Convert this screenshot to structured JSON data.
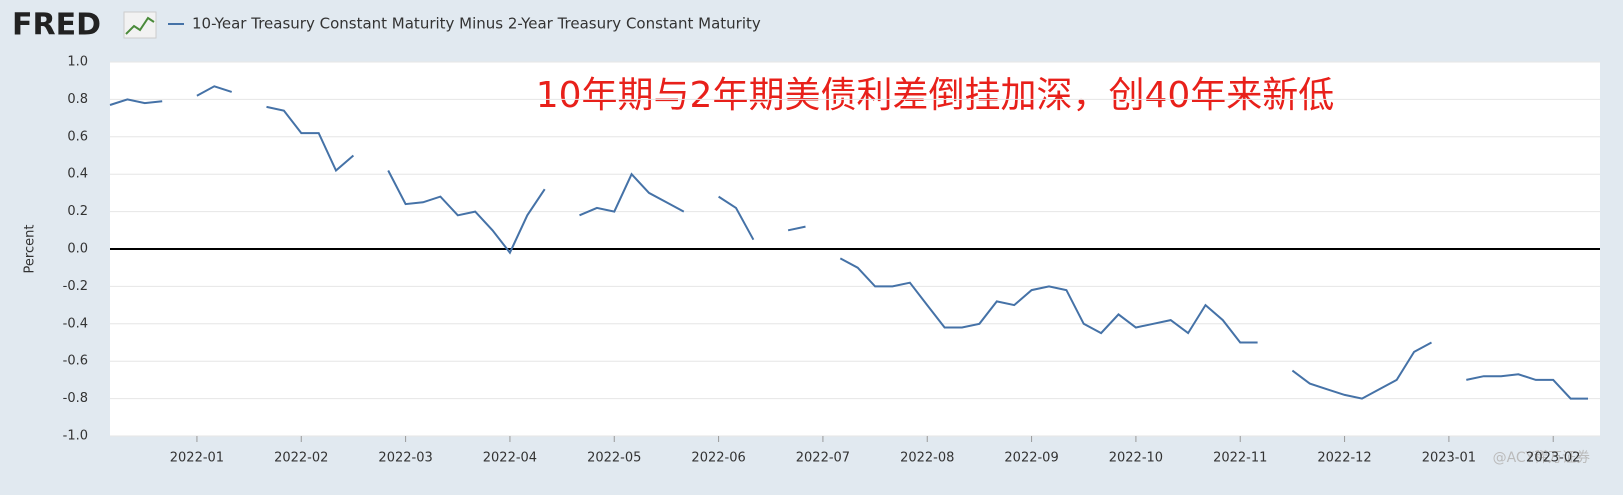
{
  "header": {
    "logo": "FRED"
  },
  "watermark": "@ACY稀万证券",
  "chart_data": {
    "type": "line",
    "title": "10-Year Treasury Constant Maturity Minus 2-Year Treasury Constant Maturity",
    "annotation": "10年期与2年期美债利差倒挂加深，创40年来新低",
    "y_label": "Percent",
    "categories": [
      null,
      null,
      null,
      null,
      null,
      "2022-01",
      null,
      null,
      null,
      null,
      null,
      "2022-02",
      null,
      null,
      null,
      null,
      null,
      "2022-03",
      null,
      null,
      null,
      null,
      null,
      "2022-04",
      null,
      null,
      null,
      null,
      null,
      "2022-05",
      null,
      null,
      null,
      null,
      null,
      "2022-06",
      null,
      null,
      null,
      null,
      null,
      "2022-07",
      null,
      null,
      null,
      null,
      null,
      "2022-08",
      null,
      null,
      null,
      null,
      null,
      "2022-09",
      null,
      null,
      null,
      null,
      null,
      "2022-10",
      null,
      null,
      null,
      null,
      null,
      "2022-11",
      null,
      null,
      null,
      null,
      null,
      "2022-12",
      null,
      null,
      null,
      null,
      null,
      "2023-01",
      null,
      null,
      null,
      null,
      null,
      "2023-02",
      null,
      null
    ],
    "series": [
      {
        "name": "10-Year Treasury Constant Maturity Minus 2-Year Treasury Constant Maturity",
        "color": "#4572a7",
        "values": [
          0.77,
          0.8,
          0.78,
          0.79,
          null,
          0.82,
          0.87,
          0.84,
          null,
          0.76,
          0.74,
          0.62,
          0.62,
          0.42,
          0.5,
          null,
          0.42,
          0.24,
          0.25,
          0.28,
          0.18,
          0.2,
          0.1,
          -0.02,
          0.18,
          0.32,
          null,
          0.18,
          0.22,
          0.2,
          0.4,
          0.3,
          0.25,
          0.2,
          null,
          0.28,
          0.22,
          0.05,
          null,
          0.1,
          0.12,
          null,
          -0.05,
          -0.1,
          -0.2,
          -0.2,
          -0.18,
          -0.3,
          -0.42,
          -0.42,
          -0.4,
          -0.28,
          -0.3,
          -0.22,
          -0.2,
          -0.22,
          -0.4,
          -0.45,
          -0.35,
          -0.42,
          -0.4,
          -0.38,
          -0.45,
          -0.3,
          -0.38,
          -0.5,
          -0.5,
          null,
          -0.65,
          -0.72,
          -0.75,
          -0.78,
          -0.8,
          -0.75,
          -0.7,
          -0.55,
          -0.5,
          null,
          -0.7,
          -0.68,
          -0.68,
          -0.67,
          -0.7,
          -0.7,
          -0.8,
          -0.8
        ]
      }
    ],
    "ylim": [
      -1,
      1
    ],
    "yticks": [
      {
        "value": -1,
        "label": "-1.0"
      },
      -0.8,
      -0.6,
      -0.4,
      -0.2,
      {
        "value": 0,
        "label": "0.0"
      },
      0.2,
      0.4,
      0.6,
      0.8,
      {
        "value": 1,
        "label": "1.0"
      }
    ],
    "grid": true,
    "zero_line": true
  }
}
